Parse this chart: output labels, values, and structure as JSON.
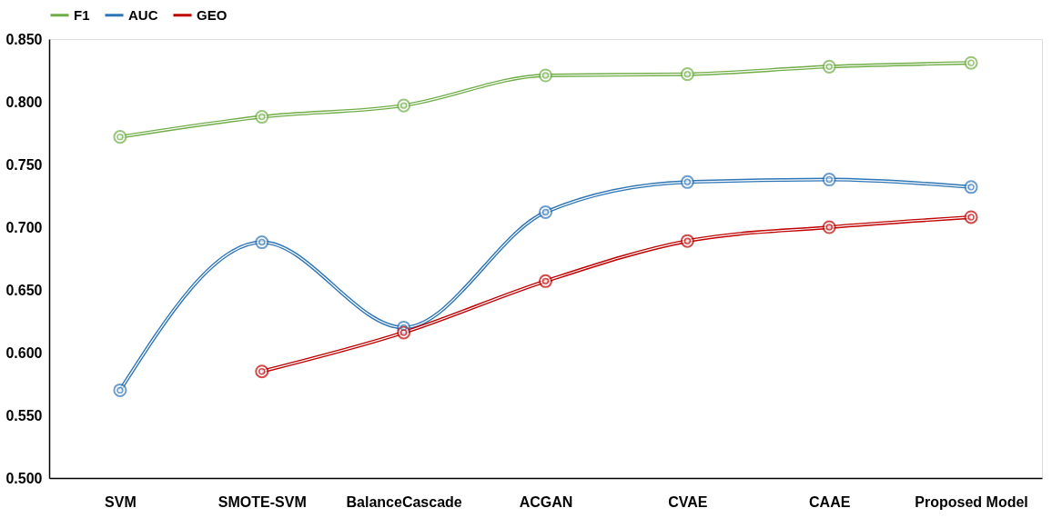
{
  "chart_data": {
    "type": "line",
    "categories": [
      "SVM",
      "SMOTE-SVM",
      "BalanceCascade",
      "ACGAN",
      "CVAE",
      "CAAE",
      "Proposed Model"
    ],
    "series": [
      {
        "name": "F1",
        "color": "#70ad47",
        "values": [
          0.772,
          0.788,
          0.797,
          0.821,
          0.822,
          0.828,
          0.831
        ]
      },
      {
        "name": "AUC",
        "color": "#2e75b6",
        "values": [
          0.57,
          0.688,
          0.62,
          0.712,
          0.736,
          0.738,
          0.732
        ]
      },
      {
        "name": "GEO",
        "color": "#c00000",
        "values": [
          null,
          0.585,
          0.616,
          0.657,
          0.689,
          0.7,
          0.708
        ]
      }
    ],
    "ylim": [
      0.5,
      0.85
    ],
    "yticks": [
      {
        "value": 0.5,
        "label": "0.500"
      },
      {
        "value": 0.55,
        "label": "0.550"
      },
      {
        "value": 0.6,
        "label": "0.600"
      },
      {
        "value": 0.65,
        "label": "0.650"
      },
      {
        "value": 0.7,
        "label": "0.700"
      },
      {
        "value": 0.75,
        "label": "0.750"
      },
      {
        "value": 0.8,
        "label": "0.800"
      },
      {
        "value": 0.85,
        "label": "0.850"
      }
    ],
    "grid": false,
    "legend": "top",
    "marker": "circle",
    "line_style": "solid"
  }
}
